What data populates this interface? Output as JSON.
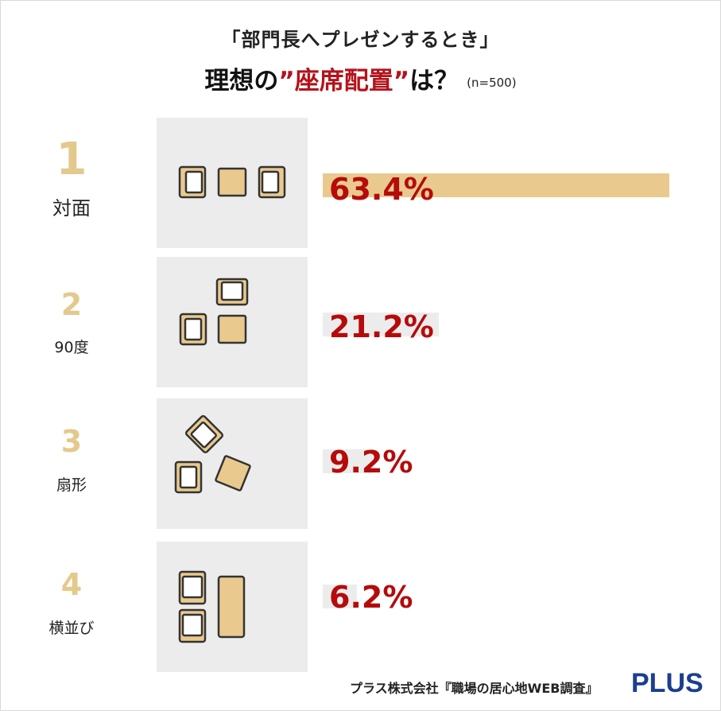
{
  "header": {
    "title_line1": "「部門長へプレゼンするとき」",
    "title_line2_pre": "理想の",
    "title_line2_highlight": "”座席配置”",
    "title_line2_post": "は？",
    "sample_size": "(n=500)"
  },
  "colors": {
    "accent_red": "#b50b0b",
    "bar_gold": "#e9c98e",
    "rank_gold": "#e4c98d",
    "logo_blue": "#1b3f8f"
  },
  "chart_data": {
    "type": "bar",
    "orientation": "horizontal",
    "categories": [
      "対面",
      "90度",
      "扇形",
      "横並び"
    ],
    "ranks": [
      "1",
      "2",
      "3",
      "4"
    ],
    "values": [
      63.4,
      21.2,
      9.2,
      6.2
    ],
    "value_labels": [
      "63.4%",
      "21.2%",
      "9.2%",
      "6.2%"
    ],
    "icons": [
      "seating-facing-icon",
      "seating-90-degree-icon",
      "seating-fan-icon",
      "seating-side-by-side-icon"
    ],
    "unit": "%",
    "xlim": [
      0,
      63.4
    ]
  },
  "footer": {
    "source": "プラス株式会社『職場の居心地WEB調査』",
    "logo": "PLUS"
  }
}
